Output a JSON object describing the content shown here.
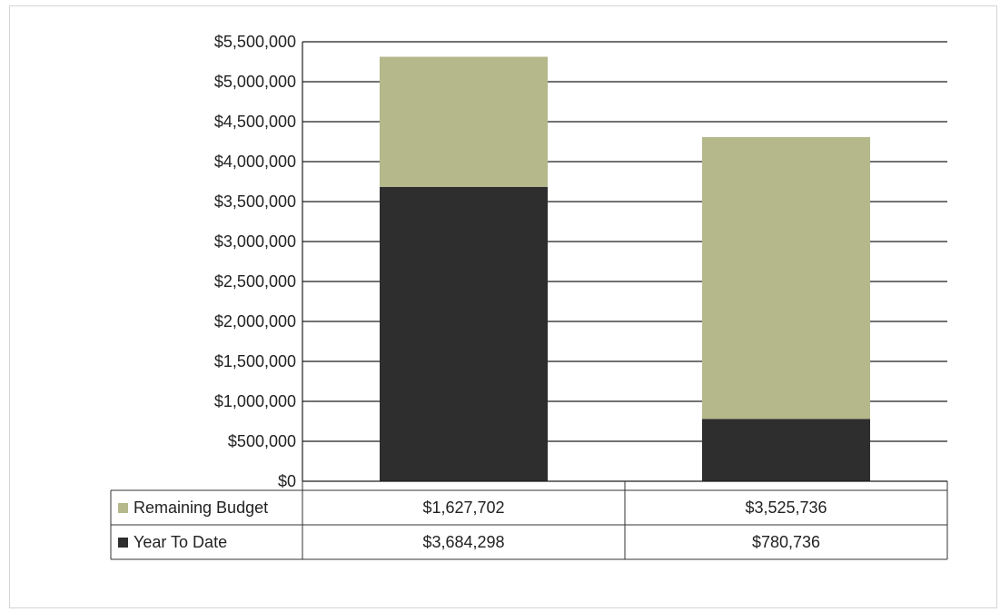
{
  "chart_data": {
    "type": "bar",
    "stacked": true,
    "categories": [
      "",
      ""
    ],
    "ylim": [
      0,
      5500000
    ],
    "y_ticks": [
      {
        "value": 0,
        "label": "$0"
      },
      {
        "value": 500000,
        "label": "$500,000"
      },
      {
        "value": 1000000,
        "label": "$1,000,000"
      },
      {
        "value": 1500000,
        "label": "$1,500,000"
      },
      {
        "value": 2000000,
        "label": "$2,000,000"
      },
      {
        "value": 2500000,
        "label": "$2,500,000"
      },
      {
        "value": 3000000,
        "label": "$3,000,000"
      },
      {
        "value": 3500000,
        "label": "$3,500,000"
      },
      {
        "value": 4000000,
        "label": "$4,000,000"
      },
      {
        "value": 4500000,
        "label": "$4,500,000"
      },
      {
        "value": 5000000,
        "label": "$5,000,000"
      },
      {
        "value": 5500000,
        "label": "$5,500,000"
      }
    ],
    "grid": true,
    "legend": "data-table",
    "series": [
      {
        "name": "Year To Date",
        "color": "#2e2e2e",
        "values": [
          3684298,
          780736
        ],
        "labels": [
          "$3,684,298",
          "$780,736"
        ]
      },
      {
        "name": "Remaining Budget",
        "color": "#b4b88a",
        "values": [
          1627702,
          3525736
        ],
        "labels": [
          "$1,627,702",
          "$3,525,736"
        ]
      }
    ],
    "table_row_order": [
      "Remaining Budget",
      "Year To Date"
    ]
  }
}
